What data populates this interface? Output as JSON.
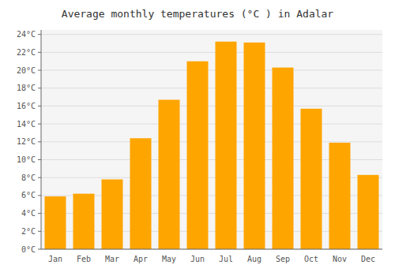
{
  "chart_data": {
    "type": "bar",
    "title": "Average monthly temperatures (°C ) in Adalar",
    "categories": [
      "Jan",
      "Feb",
      "Mar",
      "Apr",
      "May",
      "Jun",
      "Jul",
      "Aug",
      "Sep",
      "Oct",
      "Nov",
      "Dec"
    ],
    "values": [
      5.9,
      6.2,
      7.8,
      12.4,
      16.7,
      21.0,
      23.2,
      23.1,
      20.3,
      15.7,
      11.9,
      8.3
    ],
    "color": "#FFA500",
    "ylim": [
      0,
      24.5
    ],
    "yticks": [
      {
        "value": 0,
        "label": "0°C"
      },
      {
        "value": 2,
        "label": "2°C"
      },
      {
        "value": 4,
        "label": "4°C"
      },
      {
        "value": 6,
        "label": "6°C"
      },
      {
        "value": 8,
        "label": "8°C"
      },
      {
        "value": 10,
        "label": "10°C"
      },
      {
        "value": 12,
        "label": "12°C"
      },
      {
        "value": 14,
        "label": "14°C"
      },
      {
        "value": 16,
        "label": "16°C"
      },
      {
        "value": 18,
        "label": "18°C"
      },
      {
        "value": 20,
        "label": "20°C"
      },
      {
        "value": 22,
        "label": "22°C"
      },
      {
        "value": 24,
        "label": "24°C"
      }
    ],
    "grid": true
  }
}
